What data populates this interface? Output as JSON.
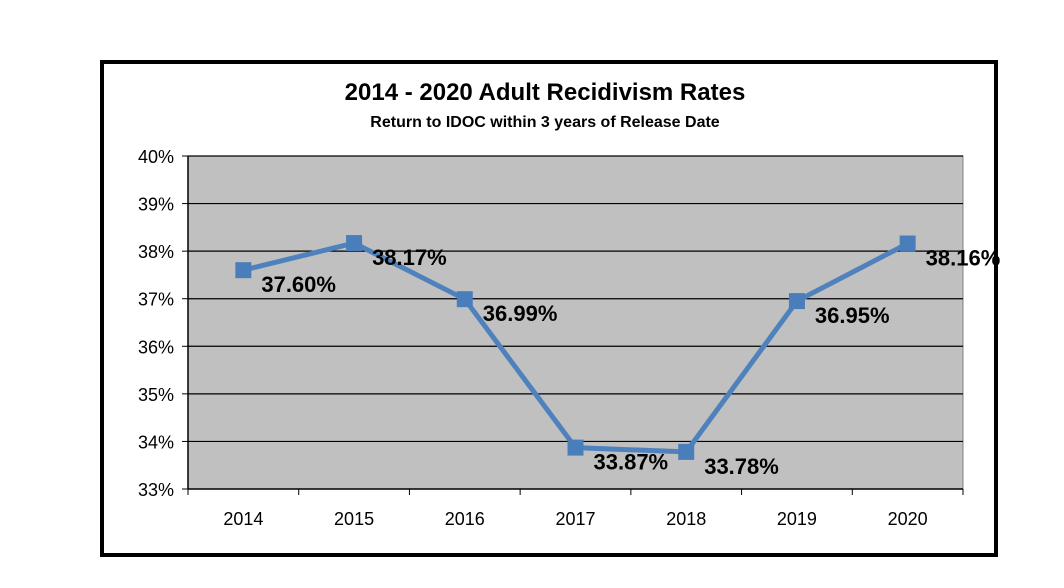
{
  "chart_data": {
    "type": "line",
    "title": "2014 - 2020 Adult Recidivism Rates",
    "subtitle": "Return to IDOC within 3 years of Release Date",
    "categories": [
      "2014",
      "2015",
      "2016",
      "2017",
      "2018",
      "2019",
      "2020"
    ],
    "series": [
      {
        "values": [
          37.6,
          38.17,
          36.99,
          33.87,
          33.78,
          36.95,
          38.16
        ],
        "data_labels": [
          "37.60%",
          "38.17%",
          "36.99%",
          "33.87%",
          "33.78%",
          "36.95%",
          "38.16%"
        ]
      }
    ],
    "ylim": [
      33,
      40
    ],
    "yticks": [
      "33%",
      "34%",
      "35%",
      "36%",
      "37%",
      "38%",
      "39%",
      "40%"
    ],
    "grid": true,
    "legend": "none",
    "colors": {
      "line": "#4f81bd",
      "marker": "#4a7ebb",
      "plot_bg": "#c0c0c0",
      "gridline": "#000000"
    }
  }
}
